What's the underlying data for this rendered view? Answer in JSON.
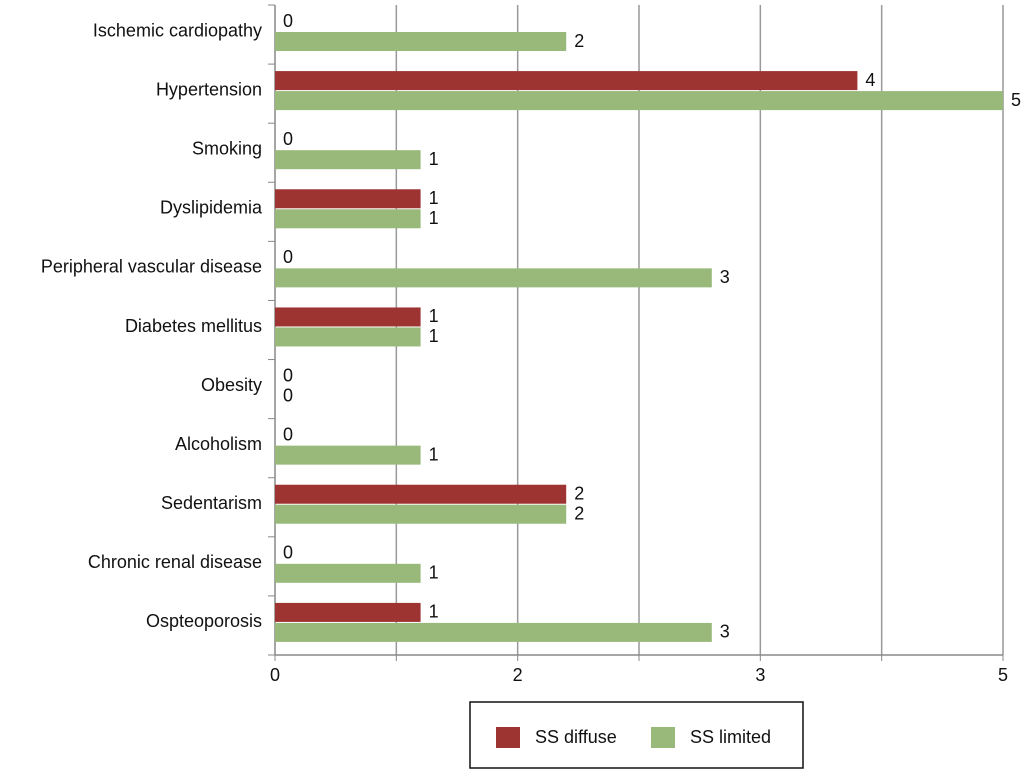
{
  "chart_data": {
    "type": "hbar",
    "categories": [
      "Ischemic cardiopathy",
      "Hypertension",
      "Smoking",
      "Dyslipidemia",
      "Peripheral vascular disease",
      "Diabetes mellitus",
      "Obesity",
      "Alcoholism",
      "Sedentarism",
      "Chronic renal disease",
      "Ospteoporosis"
    ],
    "series": [
      {
        "name": "SS diffuse",
        "color": "#9e3432",
        "values": [
          0,
          4,
          0,
          1,
          0,
          1,
          0,
          0,
          2,
          0,
          1
        ]
      },
      {
        "name": "SS limited",
        "color": "#98b97a",
        "values": [
          2,
          5,
          1,
          1,
          3,
          1,
          0,
          1,
          2,
          1,
          3
        ]
      }
    ],
    "xlim": [
      0,
      5
    ],
    "xticks": [
      0,
      {
        "value": 0.8333,
        "label": null
      },
      {
        "value": 1.6667,
        "label": "2"
      },
      {
        "value": 2.5,
        "label": null
      },
      {
        "value": 3.3333,
        "label": "3"
      },
      {
        "value": 4.1667,
        "label": null
      },
      5
    ],
    "grid": true,
    "legend": "bottom"
  }
}
